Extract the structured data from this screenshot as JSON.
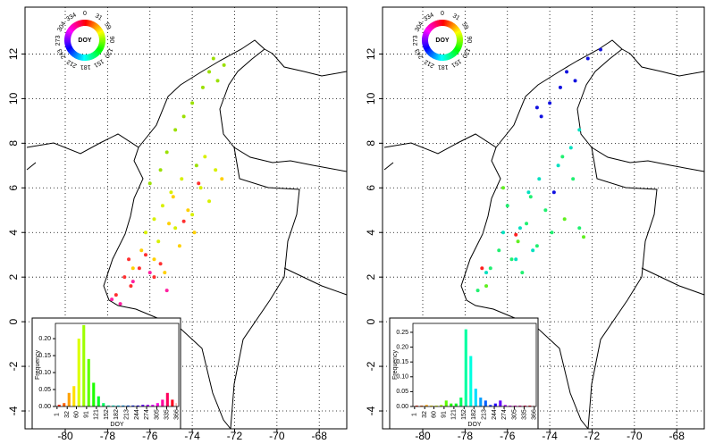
{
  "chart_data": [
    {
      "type": "scatter",
      "xlim": [
        -81.9,
        -66.7
      ],
      "ylim": [
        -4.8,
        14.1
      ],
      "xticks": [
        -80,
        -78,
        -76,
        -74,
        -72,
        -70,
        -68
      ],
      "yticks": [
        -4,
        -2,
        0,
        2,
        4,
        6,
        8,
        10,
        12
      ],
      "grid": true,
      "wheel_labels": [
        {
          "value": 0,
          "label": "0"
        },
        {
          "value": 31,
          "label": "31"
        },
        {
          "value": 59,
          "label": "59"
        },
        {
          "value": 90,
          "label": "90"
        },
        {
          "value": 120,
          "label": "120"
        },
        {
          "value": 151,
          "label": "151"
        },
        {
          "value": 181,
          "label": "181"
        },
        {
          "value": 212,
          "label": "212"
        },
        {
          "value": 243,
          "label": "243"
        },
        {
          "value": 273,
          "label": "273"
        },
        {
          "value": 304,
          "label": "304"
        },
        {
          "value": 334,
          "label": "334"
        }
      ],
      "wheel_title": "DOY",
      "point_groups": [
        {
          "color": "#9be000",
          "x": [
            -73.2,
            -72.8,
            -73.5,
            -74.0,
            -74.4,
            -73.0,
            -72.5,
            -74.8,
            -75.2,
            -73.8,
            -75.5,
            -76.0
          ],
          "y": [
            11.2,
            10.8,
            10.5,
            9.8,
            9.2,
            11.8,
            11.5,
            8.6,
            7.6,
            7.0,
            6.8,
            6.2
          ]
        },
        {
          "color": "#d8f000",
          "x": [
            -74.5,
            -75.0,
            -75.4,
            -73.6,
            -73.2,
            -74.0,
            -75.8,
            -76.2,
            -74.8,
            -72.9,
            -73.4,
            -75.6
          ],
          "y": [
            6.4,
            5.8,
            5.2,
            6.0,
            5.4,
            4.8,
            4.6,
            4.0,
            4.2,
            6.8,
            7.4,
            3.6
          ]
        },
        {
          "color": "#ffd000",
          "x": [
            -74.2,
            -75.1,
            -76.4,
            -75.8,
            -74.6,
            -76.8,
            -75.3,
            -73.9,
            -72.6,
            -74.9
          ],
          "y": [
            5.0,
            4.4,
            3.2,
            2.8,
            3.4,
            2.4,
            2.2,
            4.0,
            6.4,
            5.6
          ]
        },
        {
          "color": "#ff3030",
          "x": [
            -77.2,
            -76.9,
            -77.6,
            -76.5,
            -75.8,
            -76.2,
            -77.0,
            -75.5,
            -73.7,
            -74.4
          ],
          "y": [
            2.0,
            1.6,
            1.2,
            2.4,
            2.0,
            3.0,
            2.8,
            2.6,
            6.2,
            4.5
          ]
        },
        {
          "color": "#ff20a0",
          "x": [
            -77.8,
            -77.4,
            -76.8,
            -76.0,
            -75.2
          ],
          "y": [
            1.0,
            0.8,
            1.8,
            2.2,
            1.4
          ]
        }
      ],
      "inset": {
        "type": "histogram",
        "xlabel": "DOY",
        "ylabel": "Frequency",
        "bins": [
          0,
          15,
          30,
          45,
          60,
          75,
          90,
          105,
          120,
          135,
          150,
          165,
          180,
          195,
          210,
          225,
          240,
          255,
          270,
          285,
          300,
          315,
          330,
          345,
          360,
          366
        ],
        "values": [
          0.005,
          0.01,
          0.04,
          0.06,
          0.2,
          0.24,
          0.14,
          0.07,
          0.03,
          0.01,
          0.003,
          0.003,
          0.003,
          0.003,
          0.003,
          0.003,
          0.003,
          0.005,
          0.005,
          0.005,
          0.01,
          0.02,
          0.04,
          0.02,
          0.01
        ],
        "bar_colors": [
          "hsl(8,100%,50%)",
          "hsl(23,100%,50%)",
          "hsl(38,100%,50%)",
          "hsl(53,100%,50%)",
          "hsl(68,100%,50%)",
          "hsl(83,100%,50%)",
          "hsl(98,100%,50%)",
          "hsl(113,100%,50%)",
          "hsl(128,100%,50%)",
          "hsl(143,100%,50%)",
          "hsl(158,100%,50%)",
          "hsl(173,100%,50%)",
          "hsl(188,100%,50%)",
          "hsl(203,100%,50%)",
          "hsl(218,100%,50%)",
          "hsl(233,100%,50%)",
          "hsl(248,100%,50%)",
          "hsl(263,100%,50%)",
          "hsl(278,100%,50%)",
          "hsl(293,100%,50%)",
          "hsl(308,100%,50%)",
          "hsl(323,100%,50%)",
          "hsl(338,100%,50%)",
          "hsl(353,100%,50%)",
          "hsl(363,100%,50%)"
        ],
        "xlim": [
          -4,
          372
        ],
        "ylim": [
          0,
          0.245
        ],
        "xticks": [
          1,
          32,
          60,
          91,
          121,
          152,
          182,
          213,
          244,
          274,
          305,
          335,
          366
        ],
        "yticks": [
          {
            "value": 0,
            "label": "0.00"
          },
          {
            "value": 0.05,
            "label": "0.05"
          },
          {
            "value": 0.1,
            "label": "0.10"
          },
          {
            "value": 0.15,
            "label": "0.15"
          },
          {
            "value": 0.2,
            "label": "0.20"
          }
        ]
      }
    },
    {
      "type": "scatter",
      "xlim": [
        -81.9,
        -66.7
      ],
      "ylim": [
        -4.8,
        14.1
      ],
      "xticks": [
        -80,
        -78,
        -76,
        -74,
        -72,
        -70,
        -68
      ],
      "yticks": [
        -4,
        -2,
        0,
        2,
        4,
        6,
        8,
        10,
        12
      ],
      "grid": true,
      "wheel_labels": [
        {
          "value": 0,
          "label": "0"
        },
        {
          "value": 31,
          "label": "31"
        },
        {
          "value": 59,
          "label": "59"
        },
        {
          "value": 90,
          "label": "90"
        },
        {
          "value": 120,
          "label": "120"
        },
        {
          "value": 151,
          "label": "151"
        },
        {
          "value": 181,
          "label": "181"
        },
        {
          "value": 212,
          "label": "212"
        },
        {
          "value": 243,
          "label": "243"
        },
        {
          "value": 273,
          "label": "273"
        },
        {
          "value": 304,
          "label": "304"
        },
        {
          "value": 334,
          "label": "334"
        }
      ],
      "wheel_title": "DOY",
      "point_groups": [
        {
          "color": "#1010e0",
          "x": [
            -73.2,
            -72.8,
            -73.5,
            -74.0,
            -74.4,
            -72.2,
            -71.6,
            -74.6,
            -73.8
          ],
          "y": [
            11.2,
            10.8,
            10.5,
            9.8,
            9.2,
            11.8,
            12.2,
            9.6,
            5.8
          ]
        },
        {
          "color": "#00e0c0",
          "x": [
            -74.5,
            -75.0,
            -75.4,
            -73.6,
            -76.2,
            -74.8,
            -75.6,
            -77.0,
            -73.0,
            -72.6
          ],
          "y": [
            6.4,
            5.8,
            4.2,
            7.0,
            4.0,
            3.2,
            2.8,
            2.2,
            7.8,
            8.6
          ]
        },
        {
          "color": "#20f070",
          "x": [
            -74.2,
            -75.1,
            -76.4,
            -75.8,
            -74.6,
            -76.8,
            -75.3,
            -73.9,
            -72.9,
            -74.9,
            -73.4,
            -76.0,
            -77.4,
            -72.6
          ],
          "y": [
            5.0,
            4.4,
            3.2,
            2.8,
            3.4,
            2.4,
            2.2,
            4.0,
            6.4,
            5.6,
            7.4,
            5.2,
            1.4,
            4.2
          ]
        },
        {
          "color": "#60f020",
          "x": [
            -76.2,
            -75.5,
            -77.0,
            -73.3,
            -72.4
          ],
          "y": [
            6.0,
            3.6,
            1.6,
            4.6,
            3.8
          ]
        },
        {
          "color": "#ff2020",
          "x": [
            -77.2,
            -75.6
          ],
          "y": [
            2.4,
            3.9
          ]
        }
      ],
      "inset": {
        "type": "histogram",
        "xlabel": "DOY",
        "ylabel": "Frequency",
        "bins": [
          0,
          15,
          30,
          45,
          60,
          75,
          90,
          105,
          120,
          135,
          150,
          165,
          180,
          195,
          210,
          225,
          240,
          255,
          270,
          285,
          300,
          315,
          330,
          345,
          360,
          366
        ],
        "values": [
          0.003,
          0.003,
          0.005,
          0.003,
          0.003,
          0.005,
          0.02,
          0.01,
          0.01,
          0.03,
          0.26,
          0.17,
          0.06,
          0.03,
          0.02,
          0.005,
          0.01,
          0.02,
          0.005,
          0.003,
          0.003,
          0.003,
          0.003,
          0.003,
          0.003
        ],
        "bar_colors": [
          "hsl(8,100%,50%)",
          "hsl(23,100%,50%)",
          "hsl(38,100%,50%)",
          "hsl(53,100%,50%)",
          "hsl(68,100%,50%)",
          "hsl(83,100%,50%)",
          "hsl(98,100%,50%)",
          "hsl(113,100%,50%)",
          "hsl(128,100%,50%)",
          "hsl(143,100%,50%)",
          "hsl(158,100%,50%)",
          "hsl(173,100%,50%)",
          "hsl(188,100%,50%)",
          "hsl(203,100%,50%)",
          "hsl(218,100%,50%)",
          "hsl(233,100%,50%)",
          "hsl(248,100%,50%)",
          "hsl(263,100%,50%)",
          "hsl(278,100%,50%)",
          "hsl(293,100%,50%)",
          "hsl(308,100%,50%)",
          "hsl(323,100%,50%)",
          "hsl(338,100%,50%)",
          "hsl(353,100%,50%)",
          "hsl(363,100%,50%)"
        ],
        "xlim": [
          -4,
          372
        ],
        "ylim": [
          0,
          0.28
        ],
        "xticks": [
          1,
          32,
          60,
          91,
          121,
          152,
          182,
          213,
          244,
          274,
          305,
          335,
          366
        ],
        "yticks": [
          {
            "value": 0,
            "label": "0.00"
          },
          {
            "value": 0.05,
            "label": "0.05"
          },
          {
            "value": 0.1,
            "label": "0.10"
          },
          {
            "value": 0.15,
            "label": "0.15"
          },
          {
            "value": 0.2,
            "label": "0.20"
          },
          {
            "value": 0.25,
            "label": "0.25"
          }
        ]
      }
    }
  ]
}
